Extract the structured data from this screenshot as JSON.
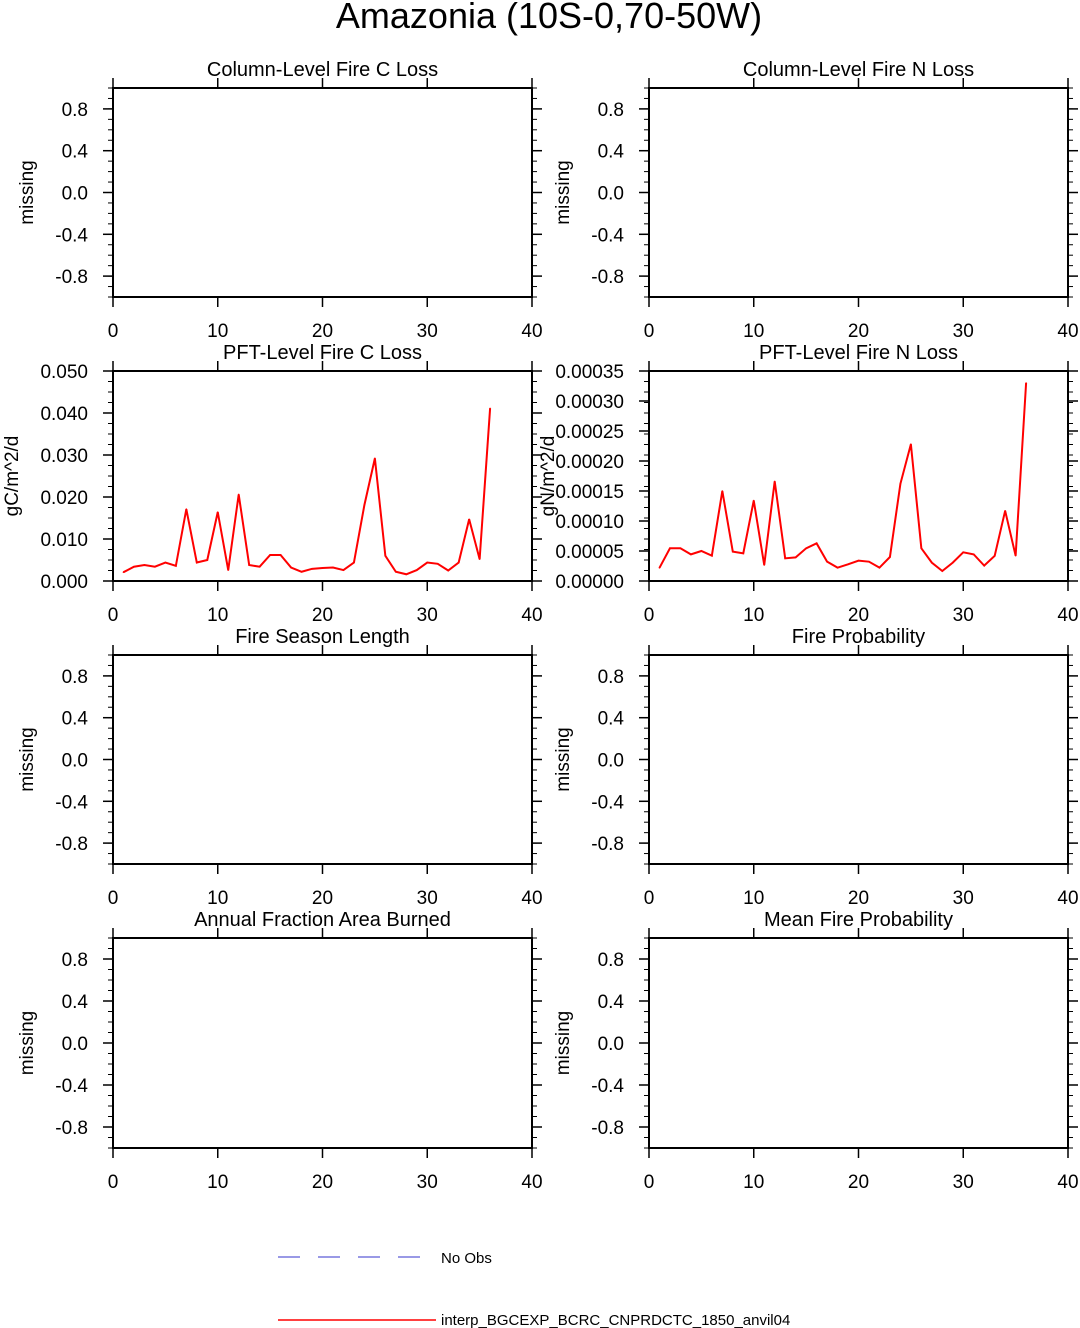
{
  "title": "Amazonia (10S-0,70-50W)",
  "colors": {
    "model": "#ff0000",
    "obs": "#3333cc",
    "axis": "#000000"
  },
  "legend": [
    {
      "label": "No Obs",
      "style": "dashed",
      "color": "#3333cc"
    },
    {
      "label": "interp_BGCEXP_BCRC_CNPRDCTC_1850_anvil04",
      "style": "solid",
      "color": "#ff0000"
    }
  ],
  "chart_data": [
    {
      "type": "line",
      "title": "Column-Level Fire C Loss",
      "ylabel": "missing",
      "xlim": [
        0,
        40
      ],
      "ylim": [
        -1,
        1
      ],
      "xticks": [
        "0",
        "10",
        "20",
        "30",
        "40"
      ],
      "yticks": [
        "0.8",
        "0.4",
        "0.0",
        "-0.4",
        "-0.8"
      ],
      "ytick_values": [
        0.8,
        0.4,
        0,
        -0.4,
        -0.8
      ],
      "x": [],
      "y": []
    },
    {
      "type": "line",
      "title": "Column-Level Fire N Loss",
      "ylabel": "missing",
      "xlim": [
        0,
        40
      ],
      "ylim": [
        -1,
        1
      ],
      "xticks": [
        "0",
        "10",
        "20",
        "30",
        "40"
      ],
      "yticks": [
        "0.8",
        "0.4",
        "0.0",
        "-0.4",
        "-0.8"
      ],
      "ytick_values": [
        0.8,
        0.4,
        0,
        -0.4,
        -0.8
      ],
      "x": [],
      "y": []
    },
    {
      "type": "line",
      "title": "PFT-Level Fire C Loss",
      "ylabel": "gC/m^2/d",
      "xlim": [
        0,
        40
      ],
      "ylim": [
        0,
        0.05
      ],
      "xticks": [
        "0",
        "10",
        "20",
        "30",
        "40"
      ],
      "yticks": [
        "0.050",
        "0.040",
        "0.030",
        "0.020",
        "0.010",
        "0.000"
      ],
      "ytick_values": [
        0.05,
        0.04,
        0.03,
        0.02,
        0.01,
        0
      ],
      "x": [
        1,
        2,
        3,
        4,
        5,
        6,
        7,
        8,
        9,
        10,
        11,
        12,
        13,
        14,
        15,
        16,
        17,
        18,
        19,
        20,
        21,
        22,
        23,
        24,
        25,
        26,
        27,
        28,
        29,
        30,
        31,
        32,
        33,
        34,
        35,
        36
      ],
      "y": [
        0.0021,
        0.0034,
        0.0038,
        0.0034,
        0.0044,
        0.0036,
        0.0171,
        0.0044,
        0.005,
        0.0164,
        0.0026,
        0.0206,
        0.0038,
        0.0034,
        0.0062,
        0.0062,
        0.0032,
        0.0022,
        0.0029,
        0.0031,
        0.0032,
        0.0026,
        0.0044,
        0.0181,
        0.0292,
        0.006,
        0.0022,
        0.0016,
        0.0026,
        0.0044,
        0.0041,
        0.0025,
        0.0044,
        0.0147,
        0.0052,
        0.0411
      ]
    },
    {
      "type": "line",
      "title": "PFT-Level Fire N Loss",
      "ylabel": "gN/m^2/d",
      "xlim": [
        0,
        40
      ],
      "ylim": [
        0,
        0.00035
      ],
      "xticks": [
        "0",
        "10",
        "20",
        "30",
        "40"
      ],
      "yticks": [
        "0.00035",
        "0.00030",
        "0.00025",
        "0.00020",
        "0.00015",
        "0.00010",
        "0.00005",
        "0.00000"
      ],
      "ytick_values": [
        0.00035,
        0.0003,
        0.00025,
        0.0002,
        0.00015,
        0.0001,
        5e-05,
        0
      ],
      "x": [
        1,
        2,
        3,
        4,
        5,
        6,
        7,
        8,
        9,
        10,
        11,
        12,
        13,
        14,
        15,
        16,
        17,
        18,
        19,
        20,
        21,
        22,
        23,
        24,
        25,
        26,
        27,
        28,
        29,
        30,
        31,
        32,
        33,
        34,
        35,
        36
      ],
      "y": [
        2.2e-05,
        5.45e-05,
        5.45e-05,
        4.44e-05,
        5e-05,
        4.22e-05,
        0.00015,
        4.89e-05,
        4.61e-05,
        0.000134,
        2.67e-05,
        0.000166,
        3.78e-05,
        3.94e-05,
        5.45e-05,
        6.28e-05,
        3.22e-05,
        2.22e-05,
        2.78e-05,
        3.39e-05,
        3.22e-05,
        2.22e-05,
        4e-05,
        0.000162,
        0.000228,
        5.45e-05,
        3.06e-05,
        1.67e-05,
        3.06e-05,
        4.78e-05,
        4.44e-05,
        2.56e-05,
        4.2e-05,
        0.000117,
        4.22e-05,
        0.00033
      ]
    },
    {
      "type": "line",
      "title": "Fire Season Length",
      "ylabel": "missing",
      "xlim": [
        0,
        40
      ],
      "ylim": [
        -1,
        1
      ],
      "xticks": [
        "0",
        "10",
        "20",
        "30",
        "40"
      ],
      "yticks": [
        "0.8",
        "0.4",
        "0.0",
        "-0.4",
        "-0.8"
      ],
      "ytick_values": [
        0.8,
        0.4,
        0,
        -0.4,
        -0.8
      ],
      "x": [],
      "y": []
    },
    {
      "type": "line",
      "title": "Fire Probability",
      "ylabel": "missing",
      "xlim": [
        0,
        40
      ],
      "ylim": [
        -1,
        1
      ],
      "xticks": [
        "0",
        "10",
        "20",
        "30",
        "40"
      ],
      "yticks": [
        "0.8",
        "0.4",
        "0.0",
        "-0.4",
        "-0.8"
      ],
      "ytick_values": [
        0.8,
        0.4,
        0,
        -0.4,
        -0.8
      ],
      "x": [],
      "y": []
    },
    {
      "type": "line",
      "title": "Annual Fraction Area Burned",
      "ylabel": "missing",
      "xlim": [
        0,
        40
      ],
      "ylim": [
        -1,
        1
      ],
      "xticks": [
        "0",
        "10",
        "20",
        "30",
        "40"
      ],
      "yticks": [
        "0.8",
        "0.4",
        "0.0",
        "-0.4",
        "-0.8"
      ],
      "ytick_values": [
        0.8,
        0.4,
        0,
        -0.4,
        -0.8
      ],
      "x": [],
      "y": []
    },
    {
      "type": "line",
      "title": "Mean Fire Probability",
      "ylabel": "missing",
      "xlim": [
        0,
        40
      ],
      "ylim": [
        -1,
        1
      ],
      "xticks": [
        "0",
        "10",
        "20",
        "30",
        "40"
      ],
      "yticks": [
        "0.8",
        "0.4",
        "0.0",
        "-0.4",
        "-0.8"
      ],
      "ytick_values": [
        0.8,
        0.4,
        0,
        -0.4,
        -0.8
      ],
      "x": [],
      "y": []
    }
  ]
}
